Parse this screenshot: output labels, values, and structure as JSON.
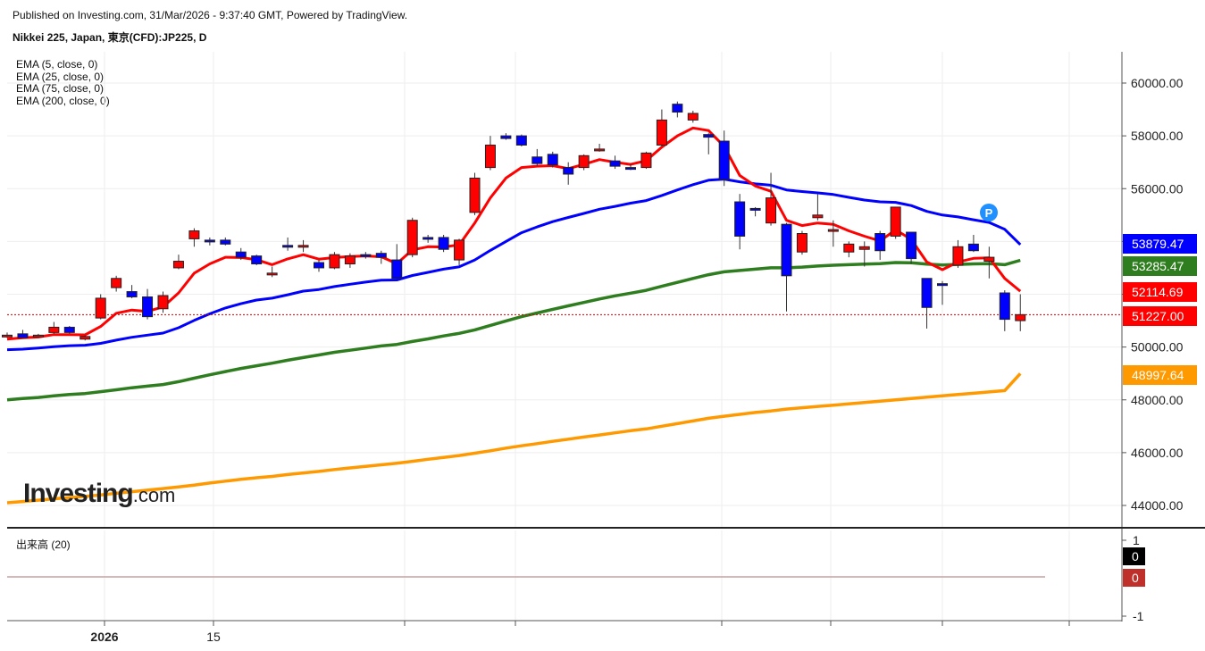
{
  "header": {
    "published": "Published on Investing.com, 31/Mar/2026 - 9:37:40 GMT, Powered by TradingView.",
    "title": "Nikkei 225, Japan, 東京(CFD):JP225, D"
  },
  "legend": [
    "EMA (5, close, 0)",
    "EMA (25, close, 0)",
    "EMA (75, close, 0)",
    "EMA (200, close, 0)"
  ],
  "volume_label": "出来高 (20)",
  "logo": {
    "main": "Investing",
    "suffix": ".com"
  },
  "marker": "P",
  "colors": {
    "up": "#ff0000",
    "down": "#0000ff",
    "ema5": "#ff0000",
    "ema25": "#0000ff",
    "ema75": "#2e7d1e",
    "ema200": "#ff9900",
    "price_line": "#cc0000"
  },
  "chart_data": {
    "type": "candlestick",
    "y_axis": {
      "ticks": [
        "60000.00",
        "58000.00",
        "56000.00",
        "54000.00",
        "52000.00",
        "50000.00",
        "48000.00",
        "46000.00",
        "44000.00"
      ],
      "tick_values": [
        60000,
        58000,
        56000,
        54000,
        52000,
        50000,
        48000,
        46000,
        44000
      ],
      "range": [
        43500,
        61000
      ]
    },
    "volume_axis": {
      "ticks": [
        "1",
        "-1"
      ],
      "tick_values": [
        1,
        -1
      ]
    },
    "x_labels": [
      {
        "label": "2026",
        "index": 8
      },
      {
        "label": "15",
        "index": 18
      }
    ],
    "price_tags": [
      {
        "label": "53879.47",
        "value": 53879.47,
        "color": "#0000ff"
      },
      {
        "label": "53285.47",
        "value": 53285.47,
        "color": "#2e7d1e"
      },
      {
        "label": "52114.69",
        "value": 52114.69,
        "color": "#ff0000"
      },
      {
        "label": "51227.00",
        "value": 51227.0,
        "color": "#ff0000"
      },
      {
        "label": "48997.64",
        "value": 48997.64,
        "color": "#ff9900"
      }
    ],
    "volume_tags": [
      {
        "label": "0",
        "color": "#000000"
      },
      {
        "label": "0",
        "color": "#c0302a"
      }
    ],
    "candles": [
      {
        "o": 50400,
        "h": 50550,
        "l": 50350,
        "c": 50450
      },
      {
        "o": 50500,
        "h": 50650,
        "l": 50350,
        "c": 50350
      },
      {
        "o": 50400,
        "h": 50500,
        "l": 50350,
        "c": 50450
      },
      {
        "o": 50550,
        "h": 50950,
        "l": 50500,
        "c": 50750
      },
      {
        "o": 50750,
        "h": 50800,
        "l": 50500,
        "c": 50550
      },
      {
        "o": 50300,
        "h": 50450,
        "l": 50250,
        "c": 50400
      },
      {
        "o": 51100,
        "h": 52000,
        "l": 51050,
        "c": 51850
      },
      {
        "o": 52250,
        "h": 52700,
        "l": 52100,
        "c": 52600
      },
      {
        "o": 52100,
        "h": 52350,
        "l": 51850,
        "c": 51900
      },
      {
        "o": 51900,
        "h": 52200,
        "l": 51050,
        "c": 51150
      },
      {
        "o": 51450,
        "h": 52100,
        "l": 51300,
        "c": 51950
      },
      {
        "o": 53000,
        "h": 53500,
        "l": 52950,
        "c": 53250
      },
      {
        "o": 54100,
        "h": 54500,
        "l": 53800,
        "c": 54400
      },
      {
        "o": 54050,
        "h": 54150,
        "l": 53850,
        "c": 54000
      },
      {
        "o": 54050,
        "h": 54150,
        "l": 53850,
        "c": 53900
      },
      {
        "o": 53600,
        "h": 53750,
        "l": 53300,
        "c": 53400
      },
      {
        "o": 53450,
        "h": 53500,
        "l": 53100,
        "c": 53150
      },
      {
        "o": 52750,
        "h": 53050,
        "l": 52650,
        "c": 52800
      },
      {
        "o": 53850,
        "h": 54150,
        "l": 53650,
        "c": 53800
      },
      {
        "o": 53850,
        "h": 54050,
        "l": 53600,
        "c": 53850
      },
      {
        "o": 53200,
        "h": 53300,
        "l": 52850,
        "c": 53000
      },
      {
        "o": 53000,
        "h": 53600,
        "l": 52950,
        "c": 53500
      },
      {
        "o": 53150,
        "h": 53550,
        "l": 53000,
        "c": 53450
      },
      {
        "o": 53500,
        "h": 53600,
        "l": 53350,
        "c": 53450
      },
      {
        "o": 53550,
        "h": 53650,
        "l": 53150,
        "c": 53400
      },
      {
        "o": 53300,
        "h": 53900,
        "l": 52650,
        "c": 52600
      },
      {
        "o": 53500,
        "h": 54900,
        "l": 53400,
        "c": 54800
      },
      {
        "o": 54150,
        "h": 54250,
        "l": 53950,
        "c": 54100
      },
      {
        "o": 54150,
        "h": 54250,
        "l": 53600,
        "c": 53700
      },
      {
        "o": 53300,
        "h": 54100,
        "l": 53100,
        "c": 54050
      },
      {
        "o": 55100,
        "h": 56600,
        "l": 55000,
        "c": 56400
      },
      {
        "o": 56800,
        "h": 58000,
        "l": 56700,
        "c": 57650
      },
      {
        "o": 58000,
        "h": 58100,
        "l": 57850,
        "c": 57900
      },
      {
        "o": 58000,
        "h": 58050,
        "l": 57600,
        "c": 57650
      },
      {
        "o": 57200,
        "h": 57500,
        "l": 56850,
        "c": 56950
      },
      {
        "o": 57300,
        "h": 57400,
        "l": 56800,
        "c": 56900
      },
      {
        "o": 56800,
        "h": 57000,
        "l": 56150,
        "c": 56550
      },
      {
        "o": 56800,
        "h": 57300,
        "l": 56700,
        "c": 57250
      },
      {
        "o": 57450,
        "h": 57700,
        "l": 57400,
        "c": 57500
      },
      {
        "o": 57050,
        "h": 57250,
        "l": 56750,
        "c": 56850
      },
      {
        "o": 56800,
        "h": 56950,
        "l": 56700,
        "c": 56750
      },
      {
        "o": 56800,
        "h": 57400,
        "l": 56750,
        "c": 57350
      },
      {
        "o": 57650,
        "h": 59000,
        "l": 57600,
        "c": 58600
      },
      {
        "o": 59200,
        "h": 59300,
        "l": 58700,
        "c": 58900
      },
      {
        "o": 58600,
        "h": 58950,
        "l": 58500,
        "c": 58850
      },
      {
        "o": 58050,
        "h": 58100,
        "l": 57300,
        "c": 57950
      },
      {
        "o": 57800,
        "h": 58200,
        "l": 56100,
        "c": 56350
      },
      {
        "o": 55500,
        "h": 55800,
        "l": 53700,
        "c": 54200
      },
      {
        "o": 55250,
        "h": 55300,
        "l": 54950,
        "c": 55200
      },
      {
        "o": 54700,
        "h": 56600,
        "l": 54600,
        "c": 55650
      },
      {
        "o": 54650,
        "h": 54700,
        "l": 51350,
        "c": 52700
      },
      {
        "o": 53600,
        "h": 54400,
        "l": 53500,
        "c": 54300
      },
      {
        "o": 54900,
        "h": 55800,
        "l": 54800,
        "c": 55000
      },
      {
        "o": 54450,
        "h": 54800,
        "l": 53800,
        "c": 54450
      },
      {
        "o": 53600,
        "h": 54000,
        "l": 53400,
        "c": 53900
      },
      {
        "o": 53700,
        "h": 54000,
        "l": 53050,
        "c": 53800
      },
      {
        "o": 54300,
        "h": 54400,
        "l": 53300,
        "c": 53650
      },
      {
        "o": 54200,
        "h": 55300,
        "l": 54100,
        "c": 55300
      },
      {
        "o": 54350,
        "h": 54350,
        "l": 53150,
        "c": 53350
      },
      {
        "o": 52600,
        "h": 52600,
        "l": 50700,
        "c": 51500
      },
      {
        "o": 52400,
        "h": 52500,
        "l": 51600,
        "c": 52350
      },
      {
        "o": 53100,
        "h": 54050,
        "l": 53000,
        "c": 53800
      },
      {
        "o": 53900,
        "h": 54250,
        "l": 53600,
        "c": 53650
      },
      {
        "o": 53250,
        "h": 53800,
        "l": 52600,
        "c": 53400
      },
      {
        "o": 52050,
        "h": 52150,
        "l": 50600,
        "c": 51050
      },
      {
        "o": 51000,
        "h": 52000,
        "l": 50600,
        "c": 51227
      }
    ],
    "ema5": [
      50300,
      50350,
      50380,
      50470,
      50470,
      50460,
      50780,
      51280,
      51400,
      51350,
      51520,
      52050,
      52800,
      53150,
      53400,
      53390,
      53310,
      53120,
      53340,
      53500,
      53330,
      53390,
      53430,
      53450,
      53420,
      53160,
      53680,
      53800,
      53790,
      53870,
      54700,
      55650,
      56400,
      56800,
      56850,
      56870,
      56760,
      56920,
      57100,
      57000,
      56920,
      57060,
      57570,
      58000,
      58300,
      58200,
      57600,
      56500,
      56100,
      55900,
      54800,
      54600,
      54700,
      54650,
      54400,
      54200,
      54020,
      54440,
      54080,
      53220,
      52930,
      53220,
      53360,
      53380,
      52600,
      52114.69
    ],
    "ema25": [
      49900,
      49920,
      49960,
      50010,
      50050,
      50070,
      50140,
      50260,
      50370,
      50450,
      50530,
      50730,
      51010,
      51260,
      51480,
      51640,
      51780,
      51850,
      51980,
      52120,
      52180,
      52290,
      52380,
      52460,
      52530,
      52540,
      52710,
      52830,
      52950,
      53040,
      53300,
      53660,
      54000,
      54330,
      54550,
      54750,
      54910,
      55060,
      55220,
      55330,
      55450,
      55550,
      55740,
      55950,
      56150,
      56320,
      56360,
      56260,
      56180,
      56130,
      55950,
      55890,
      55840,
      55780,
      55670,
      55570,
      55500,
      55480,
      55360,
      55140,
      55000,
      54930,
      54820,
      54720,
      54460,
      53879.47
    ],
    "ema75": [
      48000,
      48050,
      48090,
      48150,
      48200,
      48240,
      48310,
      48380,
      48460,
      48520,
      48580,
      48690,
      48820,
      48950,
      49070,
      49190,
      49290,
      49390,
      49500,
      49600,
      49700,
      49800,
      49880,
      49960,
      50040,
      50100,
      50210,
      50310,
      50420,
      50520,
      50650,
      50820,
      50990,
      51150,
      51290,
      51430,
      51560,
      51690,
      51820,
      51940,
      52040,
      52150,
      52300,
      52450,
      52600,
      52740,
      52850,
      52900,
      52950,
      53000,
      53000,
      53030,
      53070,
      53100,
      53120,
      53140,
      53160,
      53200,
      53190,
      53140,
      53110,
      53130,
      53150,
      53160,
      53120,
      53285.47
    ],
    "ema200": [
      44100,
      44150,
      44200,
      44250,
      44300,
      44340,
      44400,
      44460,
      44520,
      44580,
      44640,
      44700,
      44770,
      44850,
      44920,
      44990,
      45050,
      45100,
      45170,
      45230,
      45290,
      45360,
      45420,
      45480,
      45540,
      45600,
      45670,
      45750,
      45820,
      45890,
      45980,
      46070,
      46170,
      46260,
      46340,
      46430,
      46510,
      46590,
      46670,
      46750,
      46830,
      46900,
      47000,
      47100,
      47200,
      47300,
      47380,
      47450,
      47520,
      47580,
      47650,
      47700,
      47750,
      47800,
      47850,
      47900,
      47950,
      48000,
      48050,
      48100,
      48150,
      48200,
      48250,
      48300,
      48350,
      48997.64
    ]
  }
}
